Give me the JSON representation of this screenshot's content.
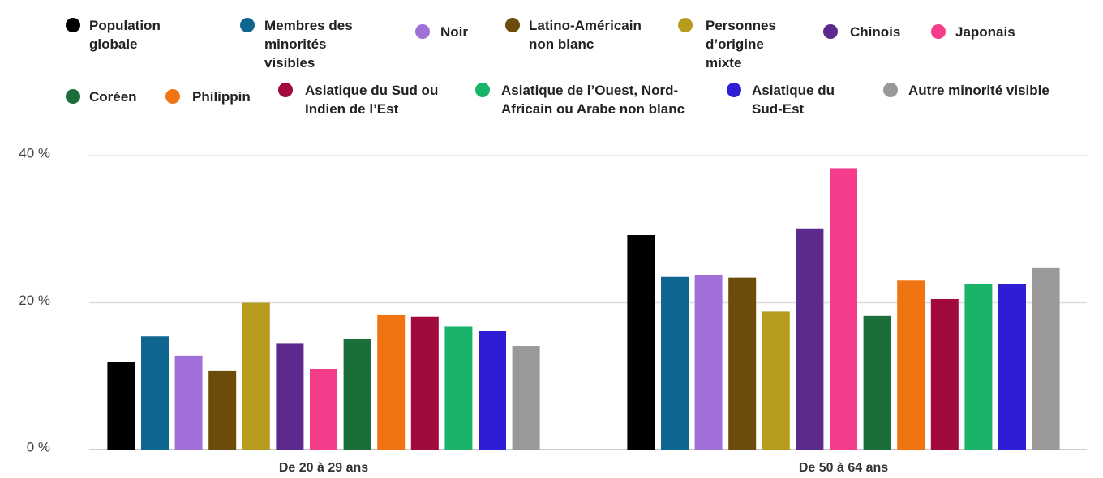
{
  "chart_data": {
    "type": "bar",
    "categories": [
      "De 20 à 29 ans",
      "De 50 à 64 ans"
    ],
    "series": [
      {
        "name": "Population globale",
        "color": "#000000",
        "values": [
          11.9,
          29.2
        ]
      },
      {
        "name": "Membres des minorités visibles",
        "color": "#0e6690",
        "values": [
          15.4,
          23.5
        ]
      },
      {
        "name": "Noir",
        "color": "#a070d8",
        "values": [
          12.8,
          23.7
        ]
      },
      {
        "name": "Latino-Américain non blanc",
        "color": "#6b4c0b",
        "values": [
          10.7,
          23.4
        ]
      },
      {
        "name": "Personnes d’origine mixte",
        "color": "#b79c1f",
        "values": [
          20.0,
          18.8
        ]
      },
      {
        "name": "Chinois",
        "color": "#5b2a8c",
        "values": [
          14.5,
          30.0
        ]
      },
      {
        "name": "Japonais",
        "color": "#f53c8a",
        "values": [
          11.0,
          38.3
        ]
      },
      {
        "name": "Coréen",
        "color": "#1a6e3a",
        "values": [
          15.0,
          18.2
        ]
      },
      {
        "name": "Philippin",
        "color": "#f07412",
        "values": [
          18.3,
          23.0
        ]
      },
      {
        "name": "Asiatique du Sud ou Indien de l’Est",
        "color": "#a00a3c",
        "values": [
          18.1,
          20.5
        ]
      },
      {
        "name": "Asiatique de l’Ouest, Nord-Africain ou Arabe non blanc",
        "color": "#19b46a",
        "values": [
          16.7,
          22.5
        ]
      },
      {
        "name": "Asiatique du Sud-Est",
        "color": "#2d1ed6",
        "values": [
          16.2,
          22.5
        ]
      },
      {
        "name": "Autre minorité visible",
        "color": "#999999",
        "values": [
          14.1,
          24.7
        ]
      }
    ],
    "ylim": [
      0,
      40
    ],
    "yticks": [
      {
        "value": 0,
        "label": "0 %"
      },
      {
        "value": 20,
        "label": "20 %"
      },
      {
        "value": 40,
        "label": "40 %"
      }
    ],
    "grid": true,
    "legend": "top"
  }
}
